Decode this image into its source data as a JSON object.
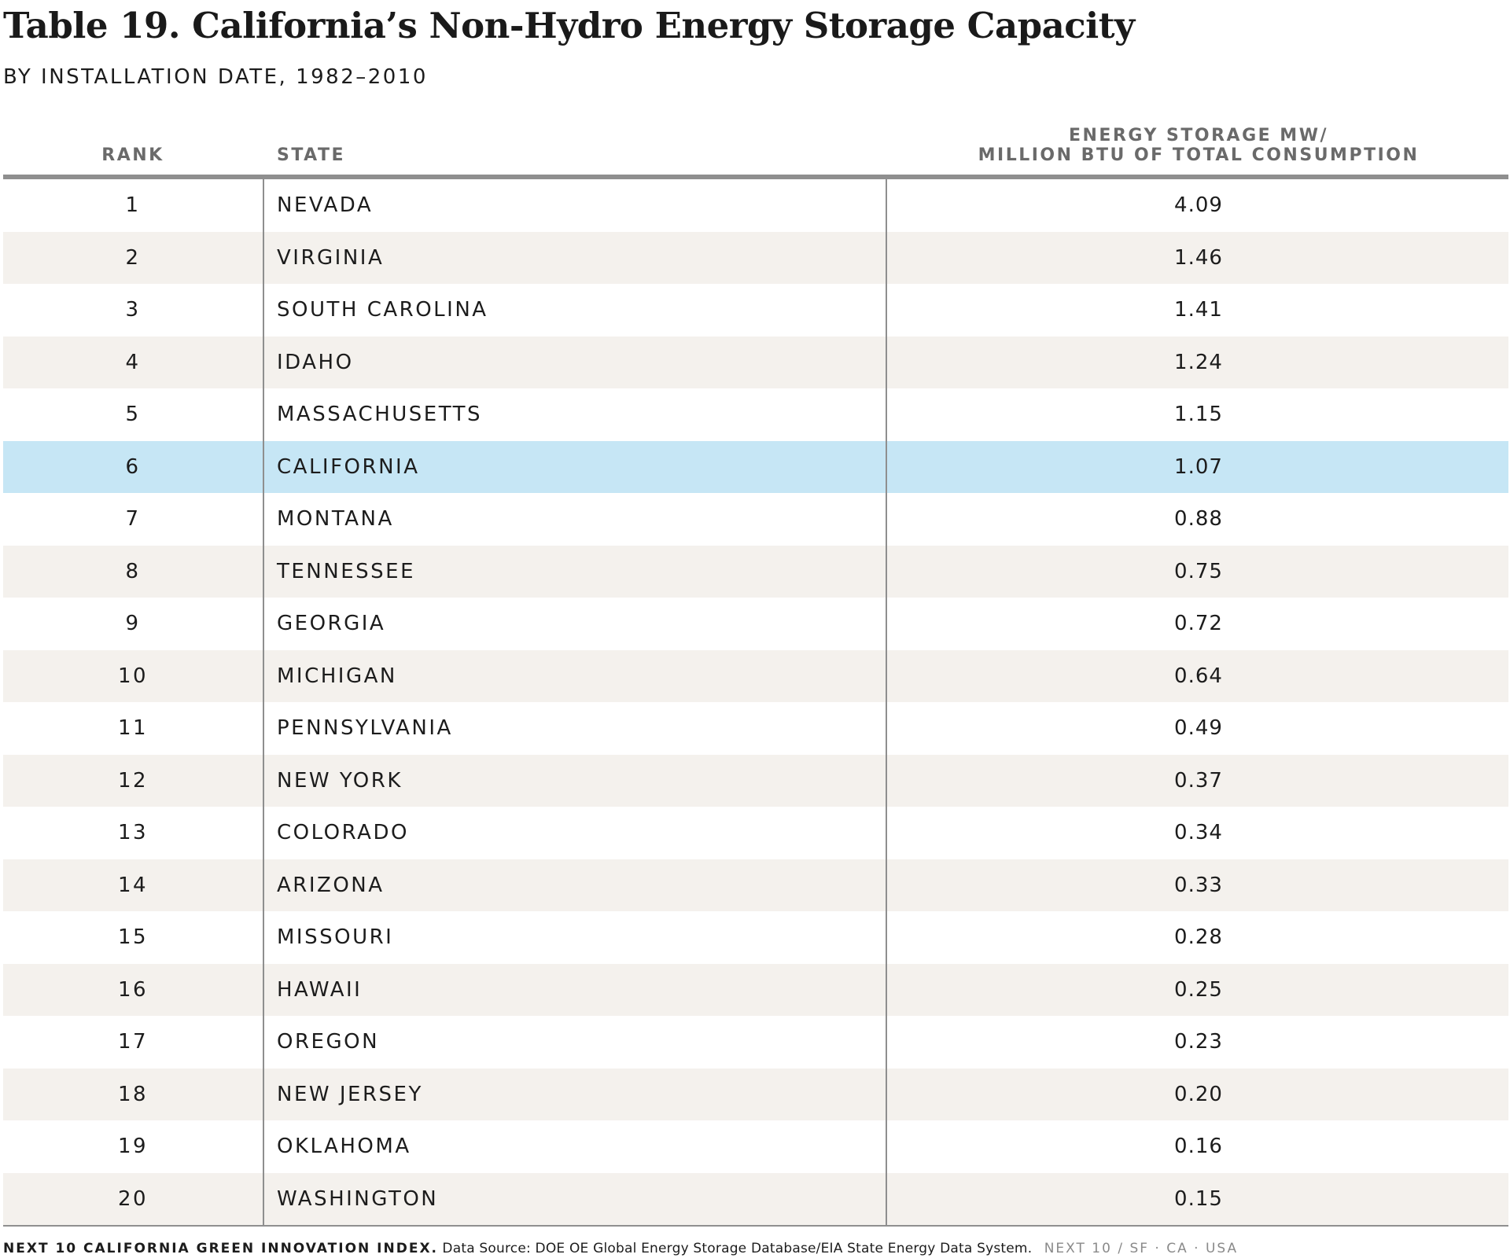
{
  "title": "Table 19. California’s Non-Hydro Energy Storage Capacity",
  "subtitle": "BY INSTALLATION DATE, 1982–2010",
  "headers": {
    "rank": "RANK",
    "state": "STATE",
    "value_line1": "ENERGY STORAGE MW/",
    "value_line2": "MILLION BTU OF TOTAL CONSUMPTION"
  },
  "highlight_color": "#c6e6f5",
  "alt_row_color": "#f4f1ed",
  "rows": [
    {
      "rank": "1",
      "state": "NEVADA",
      "value": "4.09"
    },
    {
      "rank": "2",
      "state": "VIRGINIA",
      "value": "1.46"
    },
    {
      "rank": "3",
      "state": "SOUTH CAROLINA",
      "value": "1.41"
    },
    {
      "rank": "4",
      "state": "IDAHO",
      "value": "1.24"
    },
    {
      "rank": "5",
      "state": "MASSACHUSETTS",
      "value": "1.15"
    },
    {
      "rank": "6",
      "state": "CALIFORNIA",
      "value": "1.07",
      "highlight": true
    },
    {
      "rank": "7",
      "state": "MONTANA",
      "value": "0.88"
    },
    {
      "rank": "8",
      "state": "TENNESSEE",
      "value": "0.75"
    },
    {
      "rank": "9",
      "state": "GEORGIA",
      "value": "0.72"
    },
    {
      "rank": "10",
      "state": "MICHIGAN",
      "value": "0.64"
    },
    {
      "rank": "11",
      "state": "PENNSYLVANIA",
      "value": "0.49"
    },
    {
      "rank": "12",
      "state": "NEW YORK",
      "value": "0.37"
    },
    {
      "rank": "13",
      "state": "COLORADO",
      "value": "0.34"
    },
    {
      "rank": "14",
      "state": "ARIZONA",
      "value": "0.33"
    },
    {
      "rank": "15",
      "state": "MISSOURI",
      "value": "0.28"
    },
    {
      "rank": "16",
      "state": "HAWAII",
      "value": "0.25"
    },
    {
      "rank": "17",
      "state": "OREGON",
      "value": "0.23"
    },
    {
      "rank": "18",
      "state": "NEW JERSEY",
      "value": "0.20"
    },
    {
      "rank": "19",
      "state": "OKLAHOMA",
      "value": "0.16"
    },
    {
      "rank": "20",
      "state": "WASHINGTON",
      "value": "0.15"
    }
  ],
  "footer": {
    "index": "NEXT 10 CALIFORNIA GREEN INNOVATION INDEX.",
    "source": "Data Source: DOE OE Global Energy Storage Database/EIA State Energy Data System.",
    "brand": "NEXT 10  /  SF · CA · USA"
  }
}
